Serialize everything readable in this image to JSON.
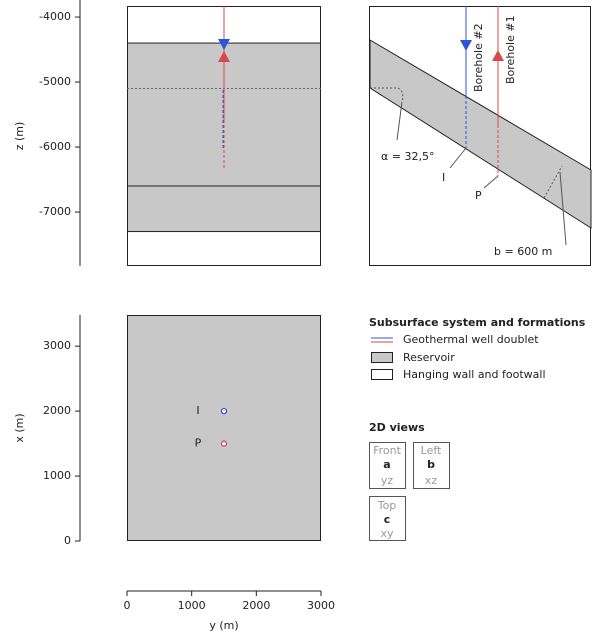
{
  "front_view": {
    "axis_label": "z (m)",
    "zlim": [
      -7830,
      -3830
    ],
    "zticks": [
      -4000,
      -5000,
      -6000,
      -7000
    ],
    "reservoir_top": -4400,
    "dashed_level": -5100,
    "solid_level": -6600,
    "reservoir_bottom": -7300
  },
  "side_view": {
    "borehole_2": "Borehole #2",
    "borehole_1": "Borehole #1",
    "angle": "α = 32,5°",
    "injector": "I",
    "producer": "P",
    "thickness": "b = 600 m"
  },
  "top_view": {
    "x_axis_label": "x (m)",
    "xlim": [
      0,
      3480
    ],
    "xticks": [
      0,
      1000,
      2000,
      3000
    ],
    "y_axis_label": "y (m)",
    "ylim": [
      0,
      3000
    ],
    "yticks": [
      0,
      1000,
      2000,
      3000
    ],
    "wells": [
      {
        "label": "I",
        "y": 1500,
        "x": 2000,
        "color": "#2f55d4"
      },
      {
        "label": "P",
        "y": 1500,
        "x": 1500,
        "color": "#d9474a"
      }
    ]
  },
  "legend": {
    "title": "Subsurface system and formations",
    "items": [
      "Geothermal well doublet",
      "Reservoir",
      "Hanging wall and footwall"
    ]
  },
  "views": {
    "title": "2D views",
    "boxes": [
      {
        "name": "Front",
        "letter": "a",
        "axes": "yz"
      },
      {
        "name": "Left",
        "letter": "b",
        "axes": "xz"
      },
      {
        "name": "Top",
        "letter": "c",
        "axes": "xy"
      }
    ]
  }
}
